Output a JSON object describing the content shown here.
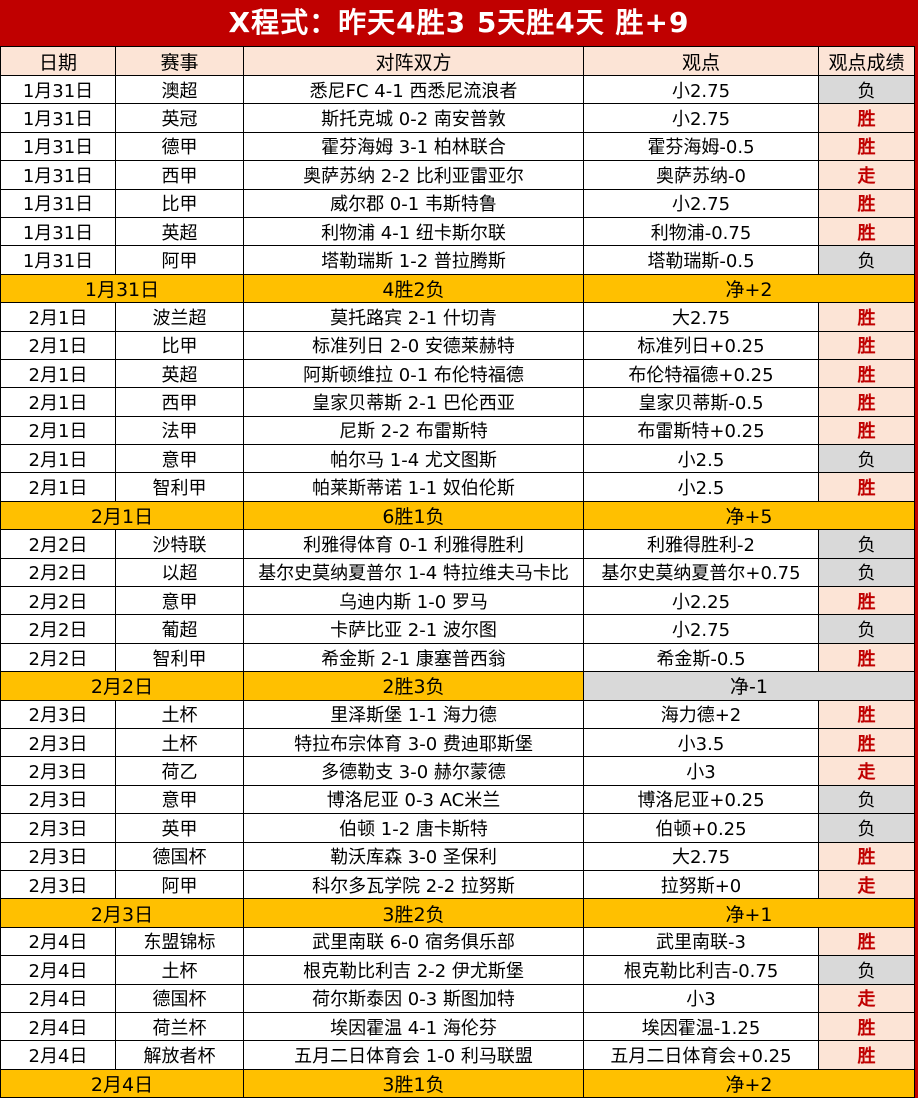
{
  "title": "X程式：昨天4胜3 5天胜4天 胜+9",
  "colors": {
    "banner_red": "#c00000",
    "win_text_red": "#c00000",
    "win_bg_peach": "#fce4d6",
    "lose_bg_gray": "#d9d9d9",
    "summary_gold": "#ffc000",
    "header_bg_peach": "#fce4d6"
  },
  "table": {
    "columns": [
      "日期",
      "赛事",
      "对阵双方",
      "观点",
      "观点成绩"
    ],
    "sections": [
      {
        "rows": [
          {
            "date": "1月31日",
            "league": "澳超",
            "match": "悉尼FC 4-1 西悉尼流浪者",
            "pick": "小2.75",
            "result": "负"
          },
          {
            "date": "1月31日",
            "league": "英冠",
            "match": "斯托克城 0-2 南安普敦",
            "pick": "小2.75",
            "result": "胜"
          },
          {
            "date": "1月31日",
            "league": "德甲",
            "match": "霍芬海姆 3-1 柏林联合",
            "pick": "霍芬海姆-0.5",
            "result": "胜"
          },
          {
            "date": "1月31日",
            "league": "西甲",
            "match": "奥萨苏纳 2-2 比利亚雷亚尔",
            "pick": "奥萨苏纳-0",
            "result": "走"
          },
          {
            "date": "1月31日",
            "league": "比甲",
            "match": "威尔郡 0-1 韦斯特鲁",
            "pick": "小2.75",
            "result": "胜"
          },
          {
            "date": "1月31日",
            "league": "英超",
            "match": "利物浦 4-1 纽卡斯尔联",
            "pick": "利物浦-0.75",
            "result": "胜"
          },
          {
            "date": "1月31日",
            "league": "阿甲",
            "match": "塔勒瑞斯 1-2 普拉腾斯",
            "pick": "塔勒瑞斯-0.5",
            "result": "负"
          }
        ],
        "summary": {
          "date": "1月31日",
          "record": "4胜2负",
          "net": "净+2"
        }
      },
      {
        "rows": [
          {
            "date": "2月1日",
            "league": "波兰超",
            "match": "莫托路宾 2-1 什切青",
            "pick": "大2.75",
            "result": "胜"
          },
          {
            "date": "2月1日",
            "league": "比甲",
            "match": "标准列日 2-0 安德莱赫特",
            "pick": "标准列日+0.25",
            "result": "胜"
          },
          {
            "date": "2月1日",
            "league": "英超",
            "match": "阿斯顿维拉 0-1 布伦特福德",
            "pick": "布伦特福德+0.25",
            "result": "胜"
          },
          {
            "date": "2月1日",
            "league": "西甲",
            "match": "皇家贝蒂斯 2-1 巴伦西亚",
            "pick": "皇家贝蒂斯-0.5",
            "result": "胜"
          },
          {
            "date": "2月1日",
            "league": "法甲",
            "match": "尼斯 2-2 布雷斯特",
            "pick": "布雷斯特+0.25",
            "result": "胜"
          },
          {
            "date": "2月1日",
            "league": "意甲",
            "match": "帕尔马 1-4 尤文图斯",
            "pick": "小2.5",
            "result": "负"
          },
          {
            "date": "2月1日",
            "league": "智利甲",
            "match": "帕莱斯蒂诺 1-1 奴伯伦斯",
            "pick": "小2.5",
            "result": "胜"
          }
        ],
        "summary": {
          "date": "2月1日",
          "record": "6胜1负",
          "net": "净+5"
        }
      },
      {
        "rows": [
          {
            "date": "2月2日",
            "league": "沙特联",
            "match": "利雅得体育 0-1 利雅得胜利",
            "pick": "利雅得胜利-2",
            "result": "负"
          },
          {
            "date": "2月2日",
            "league": "以超",
            "match": "基尔史莫纳夏普尔 1-4 特拉维夫马卡比",
            "pick": "基尔史莫纳夏普尔+0.75",
            "result": "负"
          },
          {
            "date": "2月2日",
            "league": "意甲",
            "match": "乌迪内斯 1-0 罗马",
            "pick": "小2.25",
            "result": "胜"
          },
          {
            "date": "2月2日",
            "league": "葡超",
            "match": "卡萨比亚 2-1 波尔图",
            "pick": "小2.75",
            "result": "负"
          },
          {
            "date": "2月2日",
            "league": "智利甲",
            "match": "希金斯 2-1 康塞普西翁",
            "pick": "希金斯-0.5",
            "result": "胜"
          }
        ],
        "summary": {
          "date": "2月2日",
          "record": "2胜3负",
          "net": "净-1"
        }
      },
      {
        "rows": [
          {
            "date": "2月3日",
            "league": "土杯",
            "match": "里泽斯堡 1-1 海力德",
            "pick": "海力德+2",
            "result": "胜"
          },
          {
            "date": "2月3日",
            "league": "土杯",
            "match": "特拉布宗体育 3-0 费迪耶斯堡",
            "pick": "小3.5",
            "result": "胜"
          },
          {
            "date": "2月3日",
            "league": "荷乙",
            "match": "多德勒支 3-0 赫尔蒙德",
            "pick": "小3",
            "result": "走"
          },
          {
            "date": "2月3日",
            "league": "意甲",
            "match": "博洛尼亚 0-3 AC米兰",
            "pick": "博洛尼亚+0.25",
            "result": "负"
          },
          {
            "date": "2月3日",
            "league": "英甲",
            "match": "伯顿 1-2 唐卡斯特",
            "pick": "伯顿+0.25",
            "result": "负"
          },
          {
            "date": "2月3日",
            "league": "德国杯",
            "match": "勒沃库森 3-0 圣保利",
            "pick": "大2.75",
            "result": "胜"
          },
          {
            "date": "2月3日",
            "league": "阿甲",
            "match": "科尔多瓦学院 2-2 拉努斯",
            "pick": "拉努斯+0",
            "result": "走"
          }
        ],
        "summary": {
          "date": "2月3日",
          "record": "3胜2负",
          "net": "净+1"
        }
      },
      {
        "rows": [
          {
            "date": "2月4日",
            "league": "东盟锦标",
            "match": "武里南联 6-0 宿务俱乐部",
            "pick": "武里南联-3",
            "result": "胜"
          },
          {
            "date": "2月4日",
            "league": "土杯",
            "match": "根克勒比利吉 2-2 伊尤斯堡",
            "pick": "根克勒比利吉-0.75",
            "result": "负"
          },
          {
            "date": "2月4日",
            "league": "德国杯",
            "match": "荷尔斯泰因 0-3 斯图加特",
            "pick": "小3",
            "result": "走"
          },
          {
            "date": "2月4日",
            "league": "荷兰杯",
            "match": "埃因霍温 4-1 海伦芬",
            "pick": "埃因霍温-1.25",
            "result": "胜"
          },
          {
            "date": "2月4日",
            "league": "解放者杯",
            "match": "五月二日体育会 1-0 利马联盟",
            "pick": "五月二日体育会+0.25",
            "result": "胜"
          }
        ],
        "summary": {
          "date": "2月4日",
          "record": "3胜1负",
          "net": "净+2"
        }
      }
    ]
  }
}
